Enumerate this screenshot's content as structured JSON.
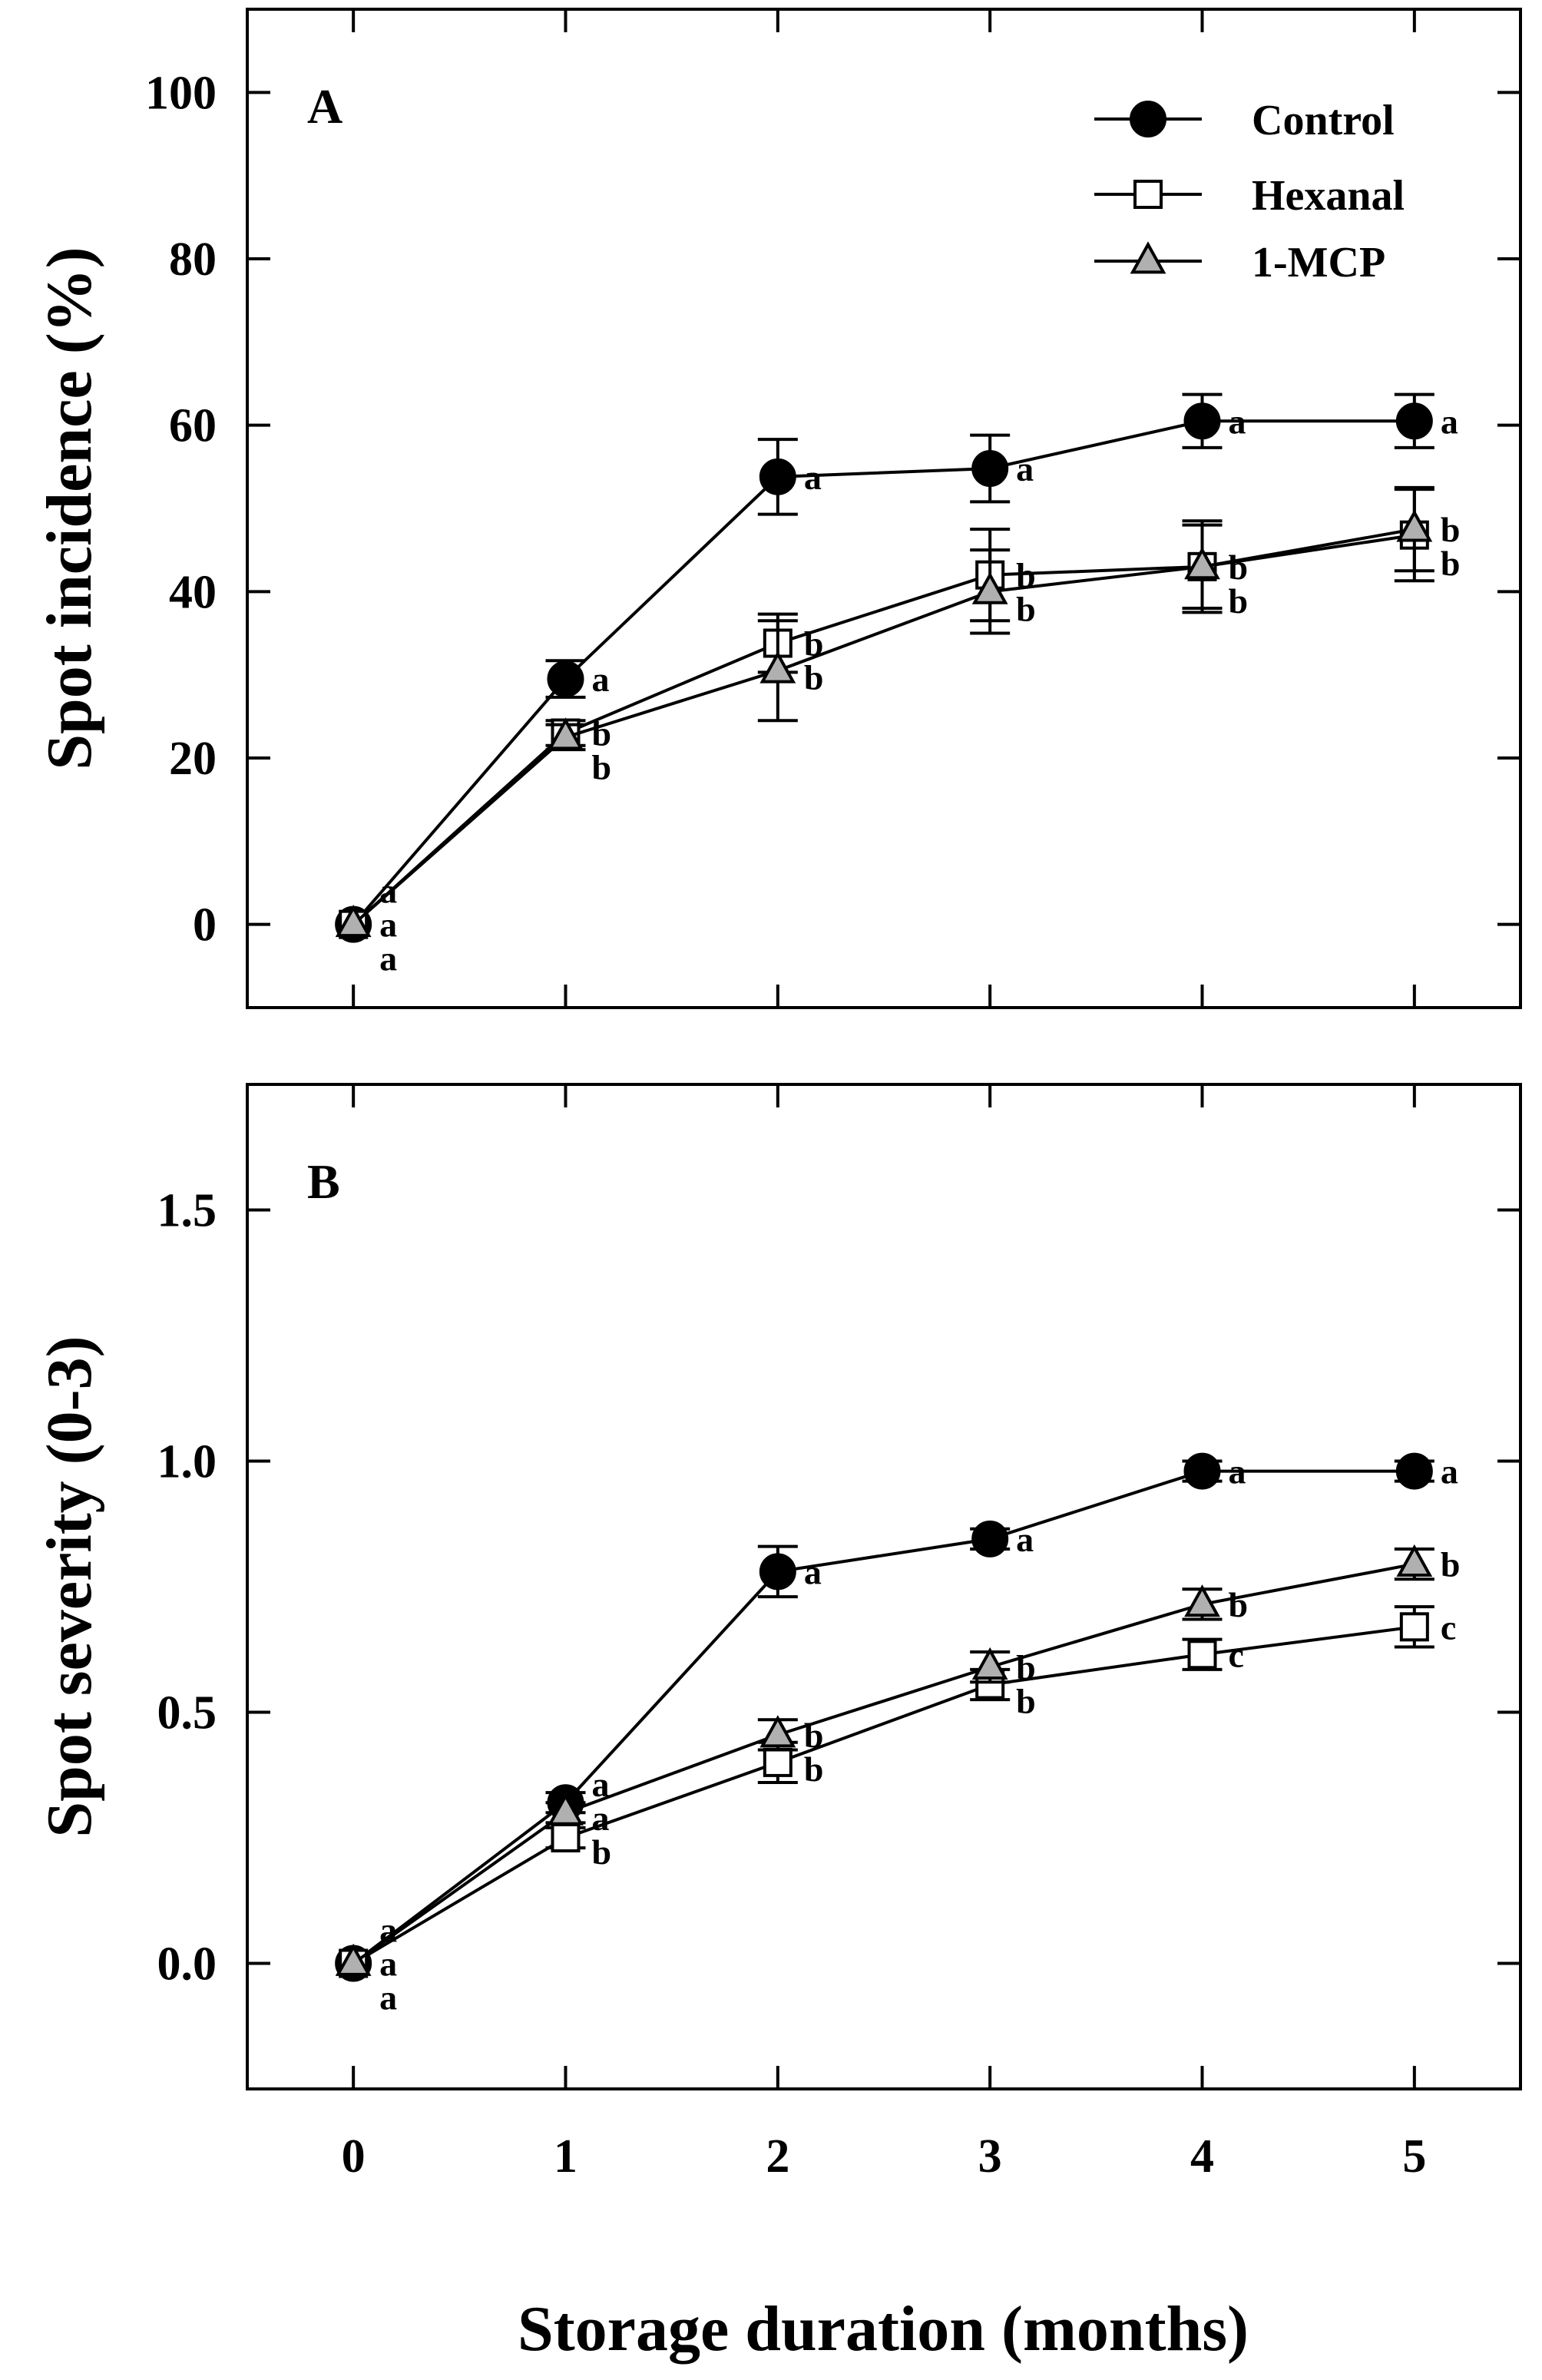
{
  "figure": {
    "xlabel": "Storage duration (months)"
  },
  "legend": {
    "entries": [
      {
        "name": "Control",
        "marker": "filled-circle",
        "color": "#000000"
      },
      {
        "name": "Hexanal",
        "marker": "open-square",
        "color": "#ffffff"
      },
      {
        "name": "1-MCP",
        "marker": "gray-triangle",
        "color": "#b0b0b0"
      }
    ]
  },
  "chart_data": [
    {
      "type": "line",
      "panel": "A",
      "title": "",
      "xlabel": "Storage duration (months)",
      "ylabel": "Spot incidence (%)",
      "x": [
        0,
        1,
        2,
        3,
        4,
        5
      ],
      "xlim": [
        -0.5,
        5.5
      ],
      "ylim": [
        -10,
        110
      ],
      "yticks": [
        0,
        20,
        40,
        60,
        80,
        100
      ],
      "ytick_labels": [
        "0",
        "20",
        "40",
        "60",
        "80",
        "100"
      ],
      "xticks": [
        0,
        1,
        2,
        3,
        4,
        5
      ],
      "xtick_labels": [
        "0",
        "1",
        "2",
        "3",
        "4",
        "5"
      ],
      "grid": false,
      "legend": "top-right",
      "series": [
        {
          "name": "Control",
          "values": [
            0,
            29.5,
            53.8,
            54.8,
            60.5,
            60.5
          ],
          "errors": [
            0,
            2.2,
            4.5,
            4.0,
            3.2,
            3.2
          ],
          "labels": [
            "a",
            "a",
            "a",
            "a",
            "a",
            "a"
          ]
        },
        {
          "name": "Hexanal",
          "values": [
            0,
            23,
            33.8,
            42,
            43,
            46.8
          ],
          "errors": [
            0,
            1.5,
            3.5,
            5.5,
            5.5,
            5.5
          ],
          "labels": [
            "a",
            "b",
            "b",
            "b",
            "b",
            "b"
          ]
        },
        {
          "name": "1-MCP",
          "values": [
            0,
            22.5,
            30.5,
            40,
            43,
            47.5
          ],
          "errors": [
            0,
            1.5,
            6.0,
            5.0,
            5.0,
            5.0
          ],
          "labels": [
            "a",
            "b",
            "b",
            "b",
            "b",
            "b"
          ]
        }
      ]
    },
    {
      "type": "line",
      "panel": "B",
      "title": "",
      "xlabel": "Storage duration (months)",
      "ylabel": "Spot severity (0-3)",
      "x": [
        0,
        1,
        2,
        3,
        4,
        5
      ],
      "xlim": [
        -0.5,
        5.5
      ],
      "ylim": [
        -0.25,
        1.75
      ],
      "yticks": [
        0,
        0.5,
        1.0,
        1.5
      ],
      "ytick_labels": [
        "0.0",
        "0.5",
        "1.0",
        "1.5"
      ],
      "xticks": [
        0,
        1,
        2,
        3,
        4,
        5
      ],
      "xtick_labels": [
        "0",
        "1",
        "2",
        "3",
        "4",
        "5"
      ],
      "grid": false,
      "series": [
        {
          "name": "Control",
          "values": [
            0,
            0.32,
            0.78,
            0.845,
            0.98,
            0.98
          ],
          "errors": [
            0,
            0.02,
            0.05,
            0.02,
            0.02,
            0.02
          ],
          "labels": [
            "a",
            "a",
            "a",
            "a",
            "a",
            "a"
          ]
        },
        {
          "name": "Hexanal",
          "values": [
            0,
            0.25,
            0.4,
            0.555,
            0.615,
            0.67
          ],
          "errors": [
            0,
            0.02,
            0.04,
            0.03,
            0.03,
            0.04
          ],
          "labels": [
            "a",
            "b",
            "b",
            "b",
            "c",
            "c"
          ]
        },
        {
          "name": "1-MCP",
          "values": [
            0,
            0.3,
            0.455,
            0.59,
            0.715,
            0.795
          ],
          "errors": [
            0,
            0.02,
            0.03,
            0.03,
            0.03,
            0.03
          ],
          "labels": [
            "a",
            "a",
            "b",
            "b",
            "b",
            "b"
          ]
        }
      ]
    }
  ]
}
